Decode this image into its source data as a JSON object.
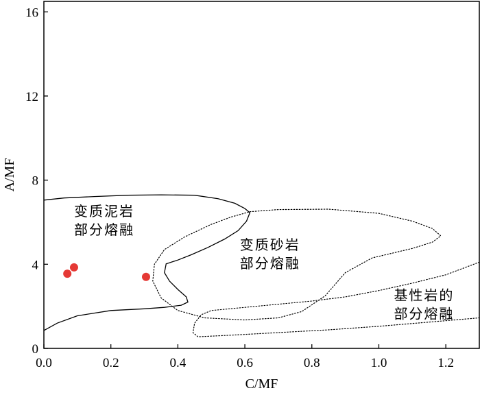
{
  "chart_data": {
    "type": "scatter",
    "title": "",
    "xlabel": "C/MF",
    "ylabel": "A/MF",
    "xlim": [
      0,
      1.3
    ],
    "ylim": [
      0,
      16.5
    ],
    "xticks": [
      0.0,
      0.2,
      0.4,
      0.6,
      0.8,
      1.0,
      1.2
    ],
    "xtick_labels": [
      "0.0",
      "0.2",
      "0.4",
      "0.6",
      "0.8",
      "1.0",
      "1.2"
    ],
    "yticks": [
      0,
      4,
      8,
      12,
      16
    ],
    "ytick_labels": [
      "0",
      "4",
      "8",
      "12",
      "16"
    ],
    "grid": false,
    "points": {
      "color": "#e53935",
      "x": [
        0.07,
        0.09,
        0.305
      ],
      "y": [
        3.55,
        3.85,
        3.4
      ]
    },
    "regions": [
      {
        "label_lines": [
          "变质泥岩",
          "部分熔融"
        ],
        "style": "solid",
        "label_pos": [
          0.09,
          6.3
        ],
        "path": [
          [
            0,
            7.05
          ],
          [
            0.06,
            7.15
          ],
          [
            0.15,
            7.22
          ],
          [
            0.25,
            7.28
          ],
          [
            0.35,
            7.3
          ],
          [
            0.45,
            7.28
          ],
          [
            0.52,
            7.12
          ],
          [
            0.57,
            6.9
          ],
          [
            0.6,
            6.65
          ],
          [
            0.615,
            6.45
          ],
          [
            0.605,
            6.05
          ],
          [
            0.58,
            5.6
          ],
          [
            0.54,
            5.2
          ],
          [
            0.49,
            4.8
          ],
          [
            0.44,
            4.45
          ],
          [
            0.4,
            4.2
          ],
          [
            0.365,
            4.02
          ],
          [
            0.36,
            3.6
          ],
          [
            0.375,
            3.2
          ],
          [
            0.4,
            2.8
          ],
          [
            0.425,
            2.45
          ],
          [
            0.43,
            2.2
          ],
          [
            0.41,
            2.05
          ],
          [
            0.36,
            1.95
          ],
          [
            0.3,
            1.88
          ],
          [
            0.2,
            1.8
          ],
          [
            0.1,
            1.55
          ],
          [
            0.04,
            1.2
          ],
          [
            0,
            0.85
          ]
        ]
      },
      {
        "label_lines": [
          "变质砂岩",
          "部分熔融"
        ],
        "style": "dotted",
        "label_pos": [
          0.585,
          4.7
        ],
        "path": [
          [
            0.615,
            6.5
          ],
          [
            0.7,
            6.6
          ],
          [
            0.85,
            6.62
          ],
          [
            1.0,
            6.42
          ],
          [
            1.1,
            6.05
          ],
          [
            1.16,
            5.7
          ],
          [
            1.185,
            5.35
          ],
          [
            1.16,
            5.05
          ],
          [
            1.1,
            4.75
          ],
          [
            0.98,
            4.3
          ],
          [
            0.9,
            3.6
          ],
          [
            0.84,
            2.5
          ],
          [
            0.77,
            1.75
          ],
          [
            0.7,
            1.45
          ],
          [
            0.6,
            1.35
          ],
          [
            0.48,
            1.45
          ],
          [
            0.4,
            1.8
          ],
          [
            0.35,
            2.4
          ],
          [
            0.325,
            3.2
          ],
          [
            0.33,
            4.0
          ],
          [
            0.36,
            4.7
          ],
          [
            0.42,
            5.3
          ],
          [
            0.5,
            5.9
          ],
          [
            0.56,
            6.25
          ],
          [
            0.615,
            6.5
          ]
        ]
      },
      {
        "label_lines": [
          "基性岩的",
          "部分熔融"
        ],
        "style": "dotted",
        "label_pos": [
          1.045,
          2.3
        ],
        "path": [
          [
            1.3,
            4.1
          ],
          [
            1.25,
            3.8
          ],
          [
            1.2,
            3.5
          ],
          [
            1.1,
            3.1
          ],
          [
            1.0,
            2.75
          ],
          [
            0.9,
            2.45
          ],
          [
            0.8,
            2.25
          ],
          [
            0.7,
            2.1
          ],
          [
            0.6,
            1.95
          ],
          [
            0.5,
            1.8
          ],
          [
            0.47,
            1.6
          ],
          [
            0.45,
            1.2
          ],
          [
            0.445,
            0.75
          ],
          [
            0.46,
            0.55
          ],
          [
            0.55,
            0.62
          ],
          [
            0.7,
            0.75
          ],
          [
            0.85,
            0.88
          ],
          [
            1.0,
            1.05
          ],
          [
            1.15,
            1.25
          ],
          [
            1.3,
            1.45
          ]
        ]
      }
    ]
  }
}
